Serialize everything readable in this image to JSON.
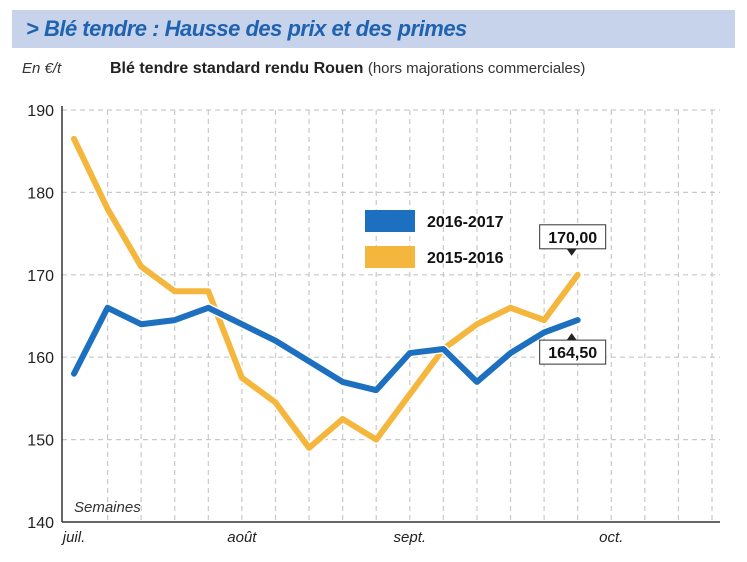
{
  "banner": {
    "title": "> Blé tendre : Hausse des prix et des primes"
  },
  "header": {
    "unit": "En €/t",
    "subtitle_bold": "Blé tendre standard rendu Rouen",
    "subtitle_note": "(hors majorations commerciales)"
  },
  "colors": {
    "blue": "#1d6fbf",
    "orange": "#f5b63e",
    "grid": "#c9c9c9",
    "callout_bg": "#ffffff"
  },
  "chart_data": {
    "type": "line",
    "xlabel": "Semaines",
    "ylabel": "En €/t",
    "ylim": [
      140,
      190
    ],
    "yticks": [
      140,
      150,
      160,
      170,
      180,
      190
    ],
    "x_ticks": [
      {
        "label": "juil.",
        "week": 0
      },
      {
        "label": "août",
        "week": 5
      },
      {
        "label": "sept.",
        "week": 10
      },
      {
        "label": "oct.",
        "week": 16
      }
    ],
    "weeks": [
      0,
      1,
      2,
      3,
      4,
      5,
      6,
      7,
      8,
      9,
      10,
      11,
      12,
      13,
      14,
      15,
      16,
      17,
      18,
      19
    ],
    "series": [
      {
        "name": "2016-2017",
        "color": "#1d6fbf",
        "values": [
          158,
          166,
          164,
          164.5,
          166,
          164,
          162,
          159.5,
          157,
          156,
          160.5,
          161,
          157,
          160.5,
          163,
          164.5
        ],
        "end_label": "164,50"
      },
      {
        "name": "2015-2016",
        "color": "#f5b63e",
        "values": [
          186.5,
          178,
          171,
          168,
          168,
          157.5,
          154.5,
          149,
          152.5,
          150,
          155.5,
          161,
          164,
          166,
          164.5,
          170
        ],
        "end_label": "170,00"
      }
    ],
    "legend_position": "center",
    "grid": true
  }
}
